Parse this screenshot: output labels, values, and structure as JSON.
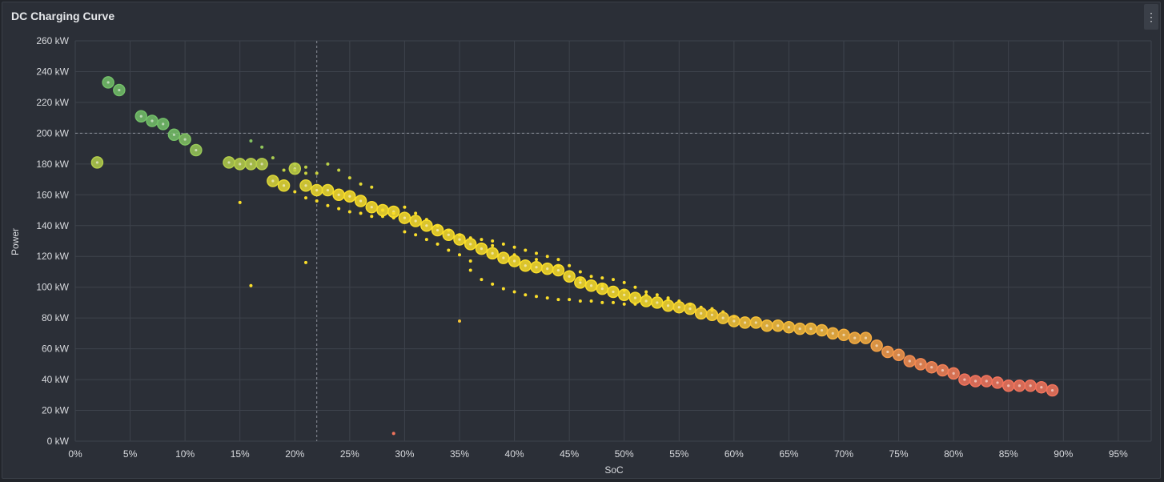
{
  "panel": {
    "title": "DC Charging Curve",
    "menu_icon": "more-vertical-icon"
  },
  "chart_data": {
    "type": "scatter",
    "title": "DC Charging Curve",
    "xlabel": "SoC",
    "ylabel": "Power",
    "xlim": [
      0,
      98
    ],
    "ylim": [
      0,
      260
    ],
    "x_ticks": [
      0,
      5,
      10,
      15,
      20,
      25,
      30,
      35,
      40,
      45,
      50,
      55,
      60,
      65,
      70,
      75,
      80,
      85,
      90,
      95
    ],
    "x_tick_labels": [
      "0%",
      "5%",
      "10%",
      "15%",
      "20%",
      "25%",
      "30%",
      "35%",
      "40%",
      "45%",
      "50%",
      "55%",
      "60%",
      "65%",
      "70%",
      "75%",
      "80%",
      "85%",
      "90%",
      "95%"
    ],
    "y_ticks": [
      0,
      20,
      40,
      60,
      80,
      100,
      120,
      140,
      160,
      180,
      200,
      220,
      240,
      260
    ],
    "y_tick_labels": [
      "0 kW",
      "20 kW",
      "40 kW",
      "60 kW",
      "80 kW",
      "100 kW",
      "120 kW",
      "140 kW",
      "160 kW",
      "180 kW",
      "200 kW",
      "220 kW",
      "240 kW",
      "260 kW"
    ],
    "grid": true,
    "crosshair": {
      "x": 22,
      "y": 200
    },
    "color_scale": {
      "high": "#73bf69",
      "mid": "#fade2a",
      "low": "#f2745c"
    },
    "points_large": [
      [
        2,
        181
      ],
      [
        3,
        233
      ],
      [
        4,
        228
      ],
      [
        6,
        211
      ],
      [
        7,
        208
      ],
      [
        8,
        206
      ],
      [
        9,
        199
      ],
      [
        10,
        196
      ],
      [
        11,
        189
      ],
      [
        14,
        181
      ],
      [
        15,
        180
      ],
      [
        16,
        180
      ],
      [
        17,
        180
      ],
      [
        18,
        169
      ],
      [
        19,
        166
      ],
      [
        20,
        177
      ],
      [
        21,
        166
      ],
      [
        22,
        163
      ],
      [
        23,
        163
      ],
      [
        24,
        160
      ],
      [
        25,
        159
      ],
      [
        26,
        156
      ],
      [
        27,
        152
      ],
      [
        28,
        150
      ],
      [
        29,
        149
      ],
      [
        30,
        145
      ],
      [
        31,
        143
      ],
      [
        32,
        140
      ],
      [
        33,
        137
      ],
      [
        34,
        134
      ],
      [
        35,
        131
      ],
      [
        36,
        128
      ],
      [
        37,
        125
      ],
      [
        38,
        122
      ],
      [
        39,
        119
      ],
      [
        40,
        117
      ],
      [
        41,
        114
      ],
      [
        42,
        113
      ],
      [
        43,
        112
      ],
      [
        44,
        111
      ],
      [
        45,
        107
      ],
      [
        46,
        103
      ],
      [
        47,
        101
      ],
      [
        48,
        99
      ],
      [
        49,
        97
      ],
      [
        50,
        95
      ],
      [
        51,
        93
      ],
      [
        52,
        91
      ],
      [
        53,
        90
      ],
      [
        54,
        88
      ],
      [
        55,
        87
      ],
      [
        56,
        86
      ],
      [
        57,
        83
      ],
      [
        58,
        82
      ],
      [
        59,
        80
      ],
      [
        60,
        78
      ],
      [
        61,
        77
      ],
      [
        62,
        77
      ],
      [
        63,
        75
      ],
      [
        64,
        75
      ],
      [
        65,
        74
      ],
      [
        66,
        73
      ],
      [
        67,
        73
      ],
      [
        68,
        72
      ],
      [
        69,
        70
      ],
      [
        70,
        69
      ],
      [
        71,
        67
      ],
      [
        72,
        67
      ],
      [
        73,
        62
      ],
      [
        74,
        58
      ],
      [
        75,
        56
      ],
      [
        76,
        52
      ],
      [
        77,
        50
      ],
      [
        78,
        48
      ],
      [
        79,
        46
      ],
      [
        80,
        44
      ],
      [
        81,
        40
      ],
      [
        82,
        39
      ],
      [
        83,
        39
      ],
      [
        84,
        38
      ],
      [
        85,
        36
      ],
      [
        86,
        36
      ],
      [
        87,
        36
      ],
      [
        88,
        35
      ],
      [
        89,
        33
      ]
    ],
    "points_small": [
      [
        16,
        195
      ],
      [
        17,
        191
      ],
      [
        18,
        184
      ],
      [
        19,
        176
      ],
      [
        20,
        180
      ],
      [
        20,
        176
      ],
      [
        21,
        178
      ],
      [
        21,
        174
      ],
      [
        22,
        174
      ],
      [
        23,
        180
      ],
      [
        24,
        176
      ],
      [
        25,
        171
      ],
      [
        26,
        167
      ],
      [
        27,
        165
      ],
      [
        15,
        155
      ],
      [
        16,
        101
      ],
      [
        20,
        162
      ],
      [
        21,
        158
      ],
      [
        21,
        116
      ],
      [
        22,
        156
      ],
      [
        23,
        153
      ],
      [
        24,
        151
      ],
      [
        25,
        149
      ],
      [
        26,
        148
      ],
      [
        27,
        146
      ],
      [
        28,
        146
      ],
      [
        29,
        145
      ],
      [
        29,
        5
      ],
      [
        30,
        136
      ],
      [
        31,
        134
      ],
      [
        32,
        131
      ],
      [
        33,
        128
      ],
      [
        34,
        124
      ],
      [
        35,
        121
      ],
      [
        35,
        78
      ],
      [
        36,
        117
      ],
      [
        36,
        111
      ],
      [
        37,
        105
      ],
      [
        38,
        102
      ],
      [
        39,
        99
      ],
      [
        40,
        97
      ],
      [
        41,
        95
      ],
      [
        42,
        94
      ],
      [
        43,
        93
      ],
      [
        44,
        92
      ],
      [
        45,
        92
      ],
      [
        46,
        91
      ],
      [
        47,
        91
      ],
      [
        48,
        90
      ],
      [
        49,
        90
      ],
      [
        50,
        89
      ],
      [
        51,
        89
      ],
      [
        36,
        132
      ],
      [
        37,
        131
      ],
      [
        38,
        130
      ],
      [
        39,
        128
      ],
      [
        40,
        126
      ],
      [
        41,
        124
      ],
      [
        42,
        122
      ],
      [
        43,
        120
      ],
      [
        44,
        118
      ],
      [
        45,
        114
      ],
      [
        46,
        110
      ],
      [
        47,
        107
      ],
      [
        48,
        106
      ],
      [
        49,
        105
      ],
      [
        50,
        103
      ],
      [
        51,
        100
      ],
      [
        52,
        97
      ],
      [
        53,
        95
      ],
      [
        54,
        93
      ],
      [
        55,
        91
      ],
      [
        56,
        89
      ],
      [
        57,
        87
      ],
      [
        58,
        86
      ],
      [
        59,
        84
      ],
      [
        28,
        150
      ],
      [
        29,
        148
      ],
      [
        30,
        152
      ],
      [
        31,
        148
      ],
      [
        32,
        144
      ],
      [
        33,
        140
      ],
      [
        34,
        137
      ],
      [
        35,
        134
      ],
      [
        38,
        127
      ],
      [
        40,
        121
      ],
      [
        42,
        118
      ],
      [
        44,
        114
      ],
      [
        46,
        105
      ],
      [
        48,
        101
      ],
      [
        50,
        98
      ],
      [
        52,
        95
      ],
      [
        54,
        92
      ],
      [
        56,
        89
      ],
      [
        58,
        85
      ],
      [
        60,
        81
      ]
    ]
  }
}
